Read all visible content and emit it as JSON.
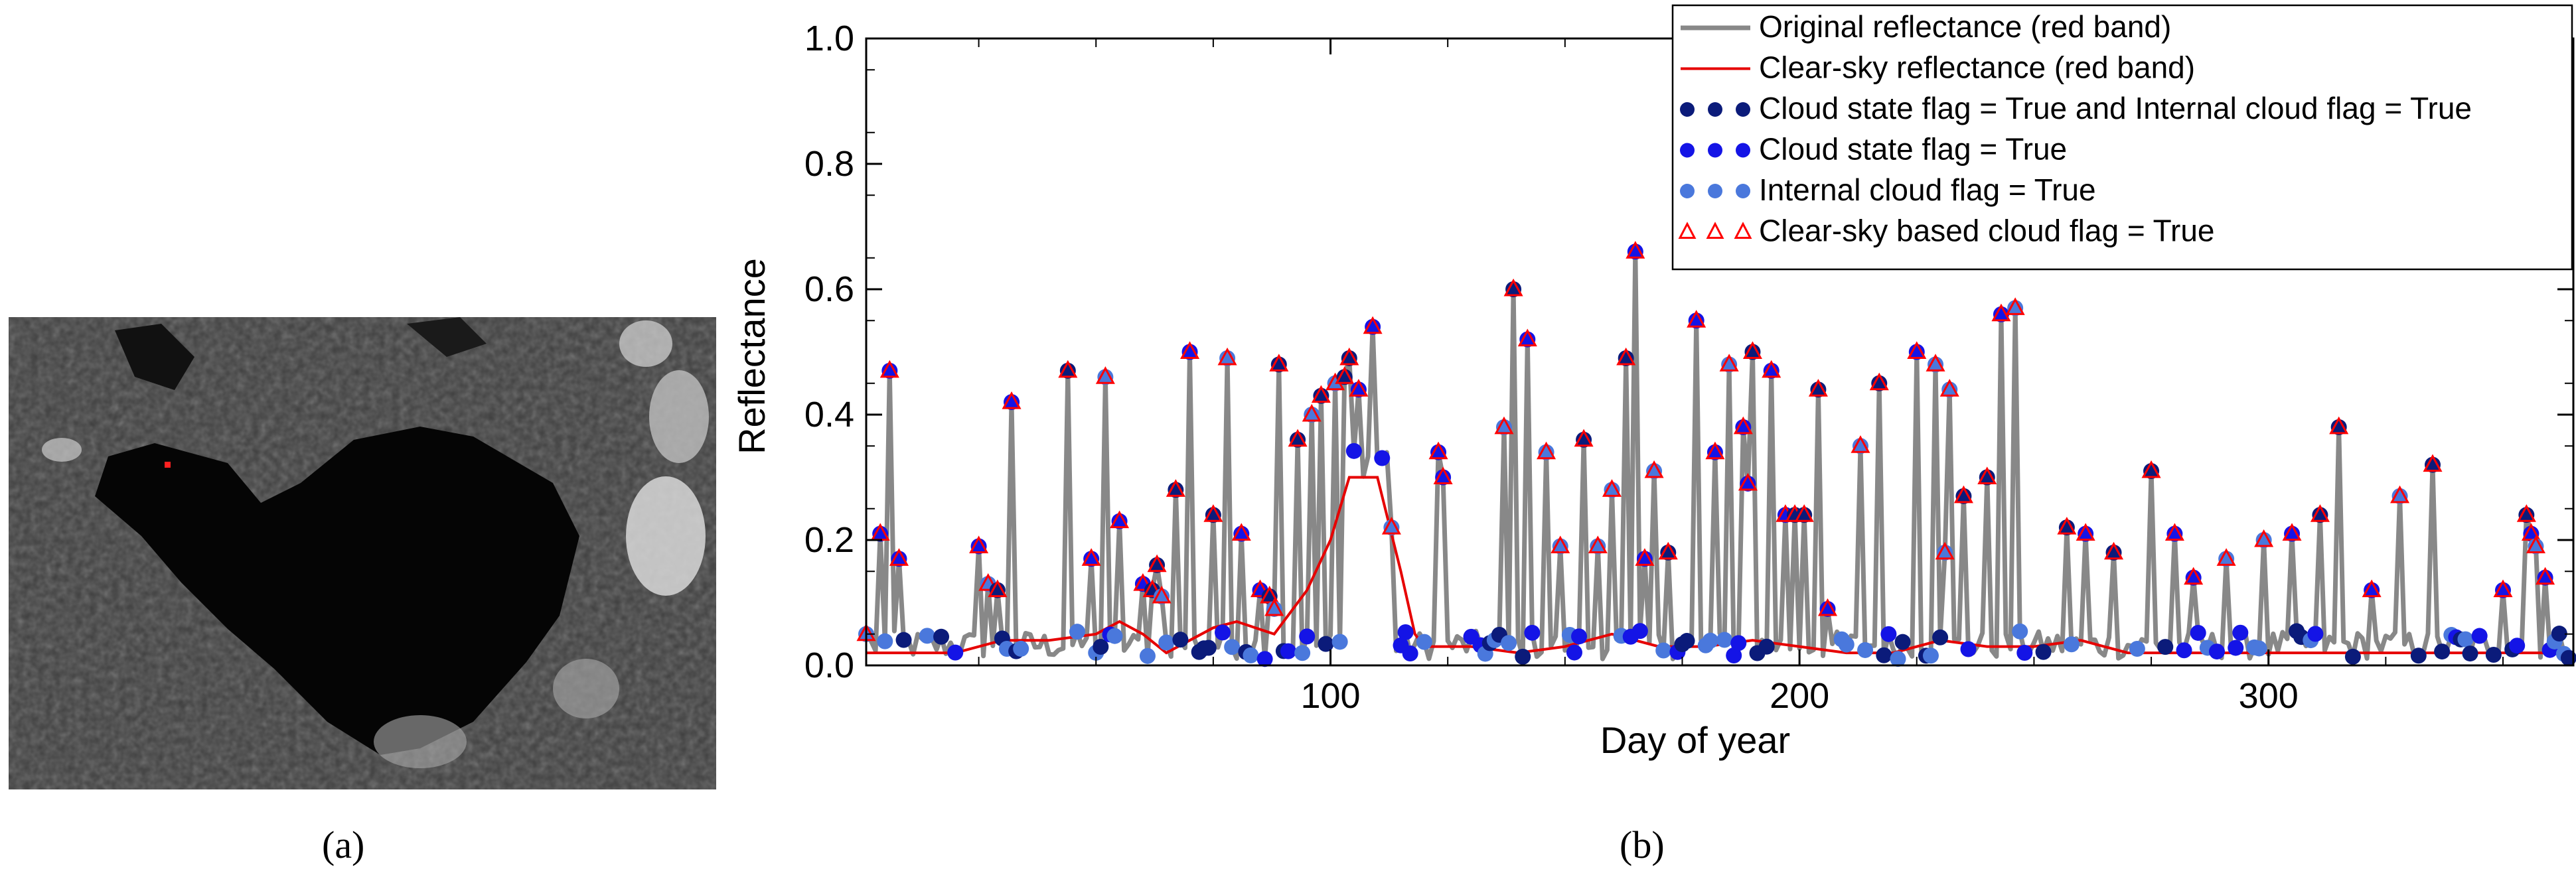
{
  "panels": {
    "a_label": "(a)",
    "b_label": "(b)"
  },
  "colors": {
    "original": "#888888",
    "clear_sky": "#e60000",
    "both_flags": "#0b1b7a",
    "cloud_state": "#1414e6",
    "internal": "#4a78dc",
    "clear_flag": "#ff0000"
  },
  "chart_data": {
    "type": "line",
    "title": "",
    "xlabel": "Day of year",
    "ylabel": "Reflectance",
    "xlim": [
      1,
      365
    ],
    "ylim": [
      0.0,
      1.0
    ],
    "xticks": [
      100,
      200,
      300
    ],
    "yticks": [
      0.0,
      0.2,
      0.4,
      0.6,
      0.8,
      1.0
    ],
    "ytick_labels": [
      "0.0",
      "0.2",
      "0.4",
      "0.6",
      "0.8",
      "1.0"
    ],
    "legend_position": "top-right",
    "legend": [
      "Original reflectance (red band)",
      "Clear-sky reflectance (red band)",
      "Cloud state flag = True and Internal cloud flag = True",
      "Cloud state flag = True",
      "Internal cloud flag = True",
      "Clear-sky based cloud flag = True"
    ],
    "clear_sky": {
      "x": [
        1,
        10,
        20,
        30,
        40,
        50,
        55,
        60,
        65,
        70,
        75,
        80,
        88,
        95,
        100,
        104,
        110,
        115,
        118,
        120,
        130,
        140,
        150,
        160,
        170,
        180,
        190,
        200,
        210,
        220,
        230,
        240,
        250,
        260,
        270,
        280,
        290,
        300,
        310,
        320,
        330,
        340,
        350,
        365
      ],
      "y": [
        0.02,
        0.02,
        0.02,
        0.04,
        0.04,
        0.05,
        0.07,
        0.05,
        0.02,
        0.04,
        0.06,
        0.07,
        0.05,
        0.12,
        0.2,
        0.3,
        0.3,
        0.15,
        0.05,
        0.03,
        0.03,
        0.02,
        0.03,
        0.05,
        0.03,
        0.03,
        0.04,
        0.03,
        0.02,
        0.02,
        0.04,
        0.03,
        0.03,
        0.04,
        0.02,
        0.02,
        0.02,
        0.02,
        0.02,
        0.02,
        0.02,
        0.02,
        0.02,
        0.02
      ]
    },
    "peaks": {
      "x": [
        1,
        4,
        6,
        8,
        25,
        27,
        29,
        32,
        44,
        49,
        52,
        55,
        60,
        62,
        63,
        64,
        67,
        70,
        75,
        78,
        81,
        85,
        87,
        88,
        89,
        93,
        96,
        98,
        101,
        103,
        104,
        106,
        109,
        113,
        123,
        124,
        137,
        139,
        142,
        146,
        149,
        154,
        157,
        160,
        163,
        165,
        167,
        169,
        172,
        178,
        182,
        185,
        188,
        189,
        190,
        194,
        197,
        199,
        201,
        204,
        206,
        213,
        217,
        225,
        229,
        231,
        232,
        235,
        240,
        243,
        246,
        257,
        261,
        267,
        275,
        280,
        284,
        291,
        299,
        305,
        311,
        315,
        322,
        328,
        335,
        350,
        355,
        356,
        357,
        359
      ],
      "y": [
        0.05,
        0.21,
        0.47,
        0.17,
        0.19,
        0.13,
        0.12,
        0.42,
        0.47,
        0.17,
        0.46,
        0.23,
        0.13,
        0.12,
        0.16,
        0.11,
        0.28,
        0.5,
        0.24,
        0.49,
        0.21,
        0.12,
        0.11,
        0.09,
        0.48,
        0.36,
        0.4,
        0.43,
        0.45,
        0.46,
        0.49,
        0.44,
        0.54,
        0.22,
        0.34,
        0.3,
        0.38,
        0.6,
        0.52,
        0.34,
        0.19,
        0.36,
        0.19,
        0.28,
        0.49,
        0.66,
        0.17,
        0.31,
        0.18,
        0.55,
        0.34,
        0.48,
        0.38,
        0.29,
        0.5,
        0.47,
        0.24,
        0.24,
        0.24,
        0.44,
        0.09,
        0.35,
        0.45,
        0.5,
        0.48,
        0.18,
        0.44,
        0.27,
        0.3,
        0.56,
        0.57,
        0.22,
        0.21,
        0.18,
        0.31,
        0.21,
        0.14,
        0.17,
        0.2,
        0.21,
        0.24,
        0.38,
        0.12,
        0.27,
        0.32,
        0.12,
        0.24,
        0.21,
        0.19,
        0.14
      ]
    },
    "series_names": [
      "Original reflectance (red band)",
      "Clear-sky reflectance (red band)"
    ]
  }
}
